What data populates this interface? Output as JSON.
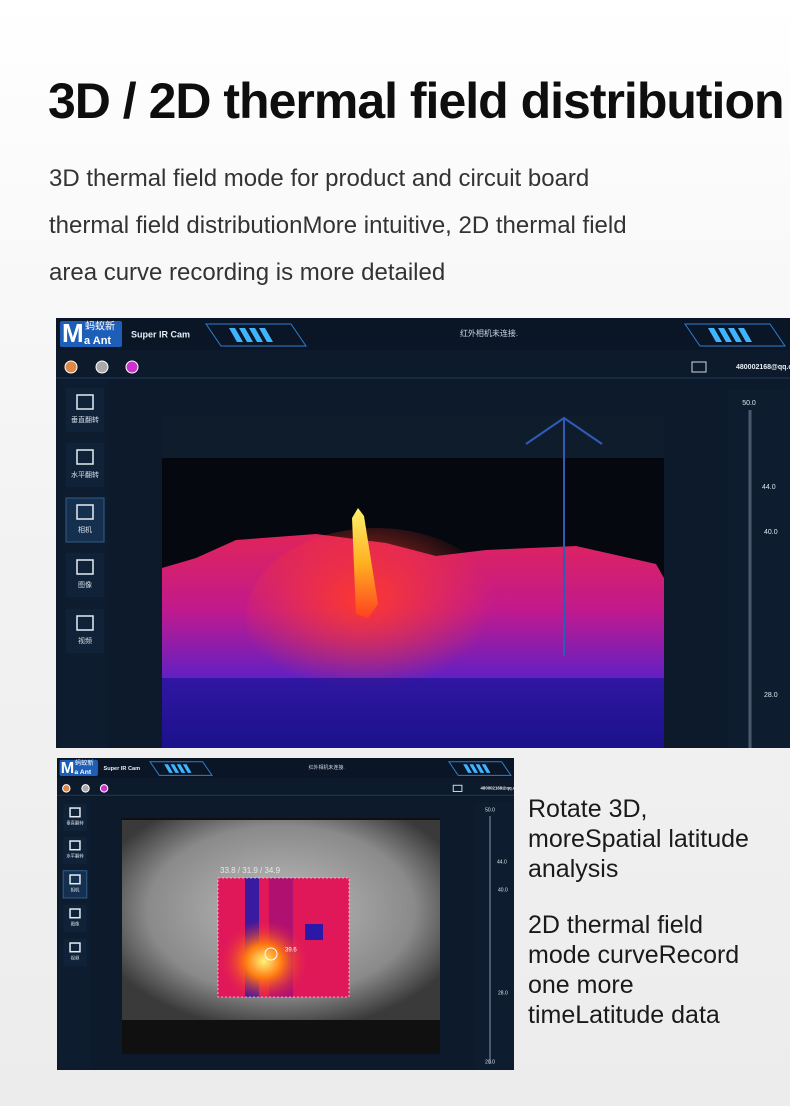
{
  "header": {
    "title": "3D / 2D thermal field distribution",
    "description_lines": [
      "3D thermal field mode for product and circuit board",
      "thermal field distributionMore intuitive, 2D thermal field",
      "area curve recording is more detailed"
    ]
  },
  "screenshot_3d": {
    "logo": {
      "letter": "M",
      "cn": "蚂蚁新",
      "en": "a Ant"
    },
    "app_name": "Super IR Cam",
    "status": "红外相机未连接.",
    "account": "480002168@qq.co",
    "sidebar": [
      "垂直翻转",
      "水平翻转",
      "相机",
      "图像",
      "视频"
    ],
    "scale_labels": [
      "50.0",
      "44.0",
      "40.0",
      "28.0"
    ]
  },
  "screenshot_2d": {
    "logo": {
      "letter": "M",
      "cn": "蚂蚁新",
      "en": "a Ant"
    },
    "app_name": "Super IR Cam",
    "status": "红外相机未连接.",
    "account": "480002168@qq.c",
    "sidebar": [
      "垂直翻转",
      "水平翻转",
      "相机",
      "图像",
      "视频"
    ],
    "scale_labels": [
      "50.0",
      "44.0",
      "40.0",
      "28.0",
      "20.0"
    ],
    "area_readout": "33.8 / 31.9 / 34.9",
    "point_readout": "39.6"
  },
  "captions": [
    {
      "lines": [
        "Rotate 3D,",
        "moreSpatial latitude",
        "analysis"
      ]
    },
    {
      "lines": [
        "2D thermal field",
        "mode curveRecord",
        "one more",
        "timeLatitude data"
      ]
    }
  ]
}
